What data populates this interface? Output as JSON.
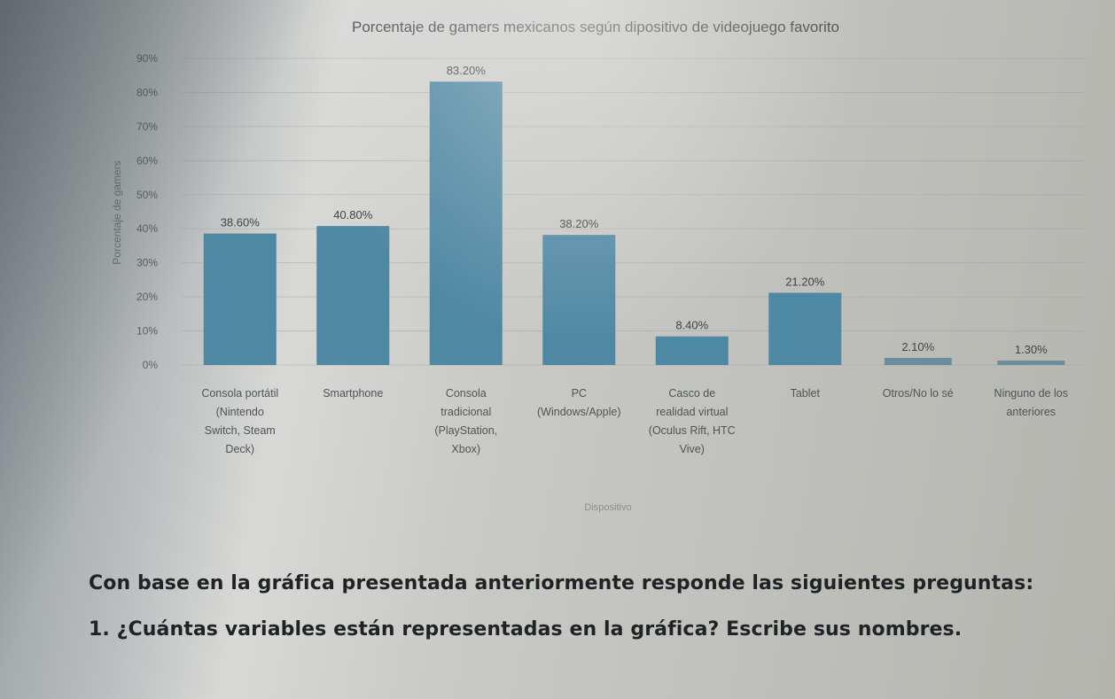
{
  "chart_data": {
    "type": "bar",
    "title": "Porcentaje de gamers mexicanos según dipositivo de videojuego favorito",
    "xlabel": "Dispositivo",
    "ylabel": "Porcentaje de gamers",
    "ylim": [
      0,
      90
    ],
    "yticks": [
      "0%",
      "10%",
      "20%",
      "30%",
      "40%",
      "50%",
      "60%",
      "70%",
      "80%",
      "90%"
    ],
    "categories": [
      [
        "Consola portátil",
        "(Nintendo",
        "Switch, Steam",
        "Deck)"
      ],
      [
        "Smartphone"
      ],
      [
        "Consola",
        "tradicional",
        "(PlayStation,",
        "Xbox)"
      ],
      [
        "PC",
        "(Windows/Apple)"
      ],
      [
        "Casco de",
        "realidad virtual",
        "(Oculus Rift, HTC",
        "Vive)"
      ],
      [
        "Tablet"
      ],
      [
        "Otros/No lo sé"
      ],
      [
        "Ninguno de los",
        "anteriores"
      ]
    ],
    "values": [
      38.6,
      40.8,
      83.2,
      38.2,
      8.4,
      21.2,
      2.1,
      1.3
    ],
    "data_labels": [
      "38.60%",
      "40.80%",
      "83.20%",
      "38.20%",
      "8.40%",
      "21.20%",
      "2.10%",
      "1.30%"
    ],
    "bar_color": "#4f88a3",
    "grid": true
  },
  "text": {
    "intro": "Con base en la gráfica presentada anteriormente responde las siguientes preguntas:",
    "question1": "1. ¿Cuántas variables están representadas en la gráfica? Escribe sus nombres."
  }
}
